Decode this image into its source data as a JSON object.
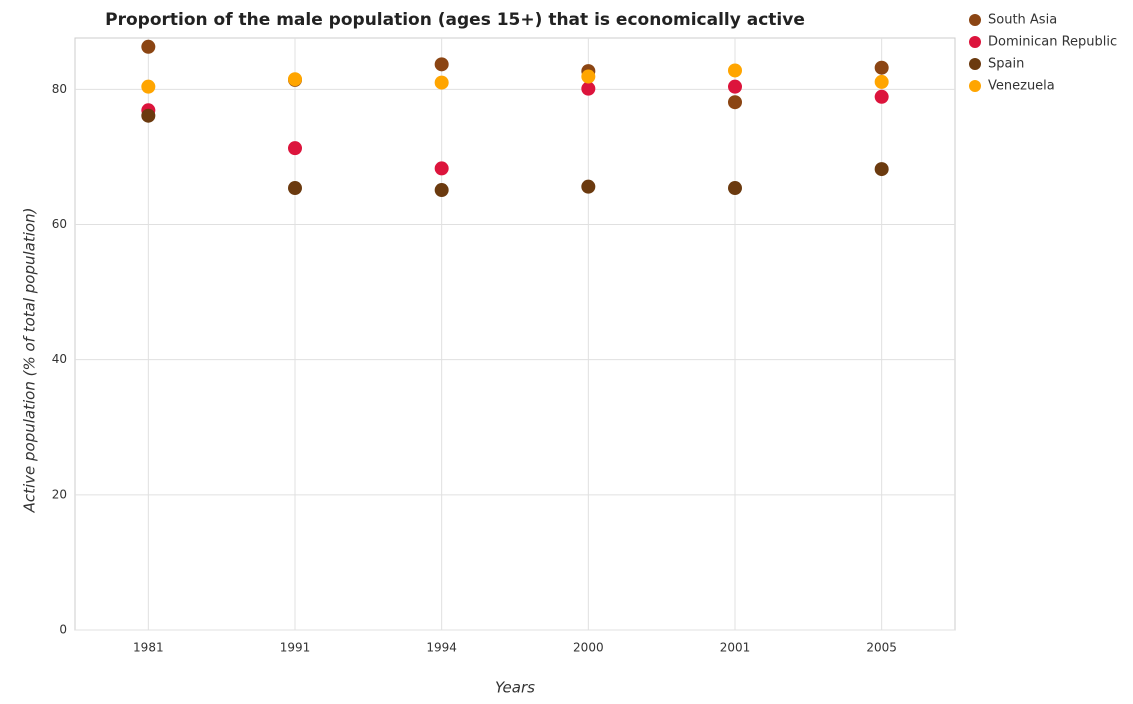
{
  "chart_data": {
    "type": "scatter",
    "title": "Proportion of the male population (ages 15+) that is economically active",
    "x_label": "Years",
    "y_label": "Active population (% of total population)",
    "categories": [
      "1981",
      "1991",
      "1994",
      "2000",
      "2001",
      "2005"
    ],
    "series": [
      {
        "name": "South Asia",
        "color": "#8b4513",
        "values": [
          86.3,
          81.4,
          83.7,
          82.7,
          78.1,
          83.2
        ]
      },
      {
        "name": "Dominican Republic",
        "color": "#dc143c",
        "values": [
          76.9,
          71.3,
          68.3,
          80.1,
          80.4,
          78.9
        ]
      },
      {
        "name": "Spain",
        "color": "#6b3a0f",
        "values": [
          76.1,
          65.4,
          65.1,
          65.6,
          65.4,
          68.2
        ]
      },
      {
        "name": "Venezuela",
        "color": "#ffa500",
        "values": [
          80.4,
          81.5,
          81.0,
          81.9,
          82.8,
          81.1
        ]
      }
    ],
    "ylim": [
      0,
      87.6
    ],
    "yticks": [
      0,
      20,
      40,
      60,
      80
    ],
    "grid": true,
    "legend": "top-right"
  }
}
